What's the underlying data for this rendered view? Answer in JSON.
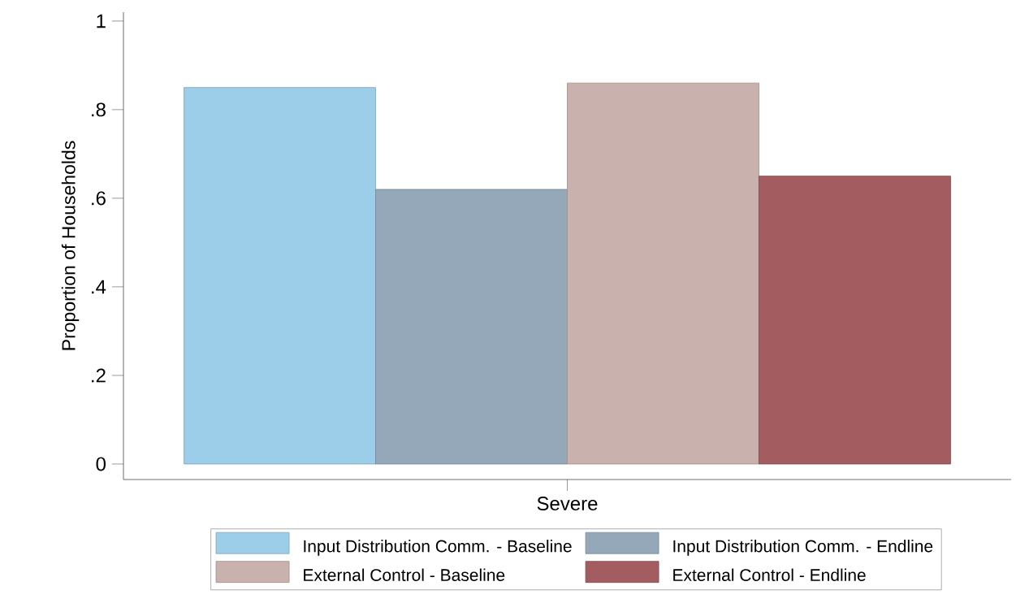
{
  "chart_data": {
    "type": "bar",
    "ylabel": "Proportion of Households",
    "categories": [
      "Severe"
    ],
    "series": [
      {
        "name": "Input Distribution Comm. - Baseline",
        "color": "#9ccde9",
        "values": [
          0.85
        ]
      },
      {
        "name": "Input Distribution Comm. - Endline",
        "color": "#94a8b9",
        "values": [
          0.62
        ]
      },
      {
        "name": "External Control - Baseline",
        "color": "#c9b2ad",
        "values": [
          0.86
        ]
      },
      {
        "name": "External Control - Endline",
        "color": "#a35d60",
        "values": [
          0.65
        ]
      }
    ],
    "ylim": [
      -0.035,
      1.02
    ],
    "yticks": [
      0,
      {
        "value": 0.2,
        "label": ".2"
      },
      {
        "value": 0.4,
        "label": ".4"
      },
      {
        "value": 0.6,
        "label": ".6"
      },
      {
        "value": 0.8,
        "label": ".8"
      },
      1
    ],
    "grid": false,
    "legend": "bottom"
  }
}
